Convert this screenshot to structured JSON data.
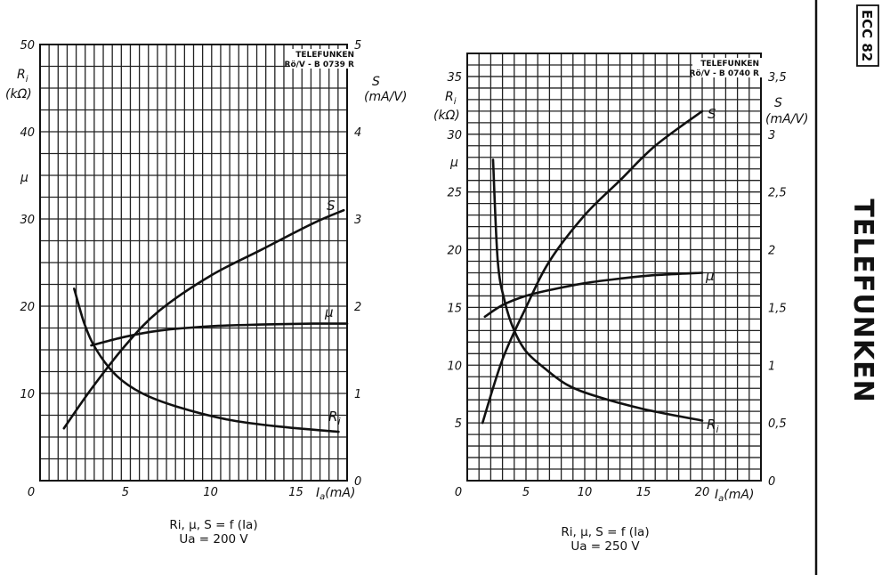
{
  "sidebar": {
    "tube_code": "ECC 82",
    "brand": "TELEFUNKEN"
  },
  "chart_data": [
    {
      "type": "line",
      "stamp_line1": "TELEFUNKEN",
      "stamp_line2": "Rö/V - B 0739 R",
      "xlabel": "I",
      "xlabel_sub": "a",
      "xlabel_unit": "(mA)",
      "xlim": [
        0,
        18
      ],
      "x_ticks": [
        "0",
        "5",
        "10",
        "15"
      ],
      "y_left_lim": [
        0,
        50
      ],
      "y_left_ticks": [
        "10",
        "20",
        "30",
        "40",
        "50"
      ],
      "y_left_labels": {
        "ri": "R",
        "ri_sub": "i",
        "ri_unit": "(kΩ)",
        "mu": "μ"
      },
      "y_right_lim": [
        0,
        5
      ],
      "y_right_ticks": [
        "0",
        "1",
        "2",
        "3",
        "4",
        "5"
      ],
      "y_right_labels": {
        "s": "S",
        "s_unit": "(mA/V)"
      },
      "series": [
        {
          "name": "S",
          "axis": "right",
          "x": [
            1.4,
            3,
            5,
            7,
            10,
            13,
            16,
            17.8
          ],
          "y": [
            0.6,
            1.05,
            1.55,
            1.95,
            2.35,
            2.65,
            2.95,
            3.1
          ]
        },
        {
          "name": "μ",
          "axis": "left",
          "x": [
            3,
            5,
            7,
            10,
            13,
            16,
            18
          ],
          "y": [
            15.5,
            16.5,
            17.2,
            17.7,
            17.9,
            18,
            18
          ]
        },
        {
          "name": "Ri",
          "axis": "left",
          "x": [
            2,
            2.6,
            3.3,
            4.5,
            6,
            8,
            11,
            14,
            17.5
          ],
          "y": [
            22,
            18,
            15,
            12,
            10,
            8.5,
            7,
            6.2,
            5.6
          ]
        }
      ],
      "caption_line1": "Ri, μ, S = f (Ia)",
      "caption_line2": "Ua = 200 V"
    },
    {
      "type": "line",
      "stamp_line1": "TELEFUNKEN",
      "stamp_line2": "Rö/V - B 0740 R",
      "xlabel": "I",
      "xlabel_sub": "a",
      "xlabel_unit": "(mA)",
      "xlim": [
        0,
        25
      ],
      "x_ticks": [
        "0",
        "5",
        "10",
        "15",
        "20"
      ],
      "y_left_lim": [
        0,
        37
      ],
      "y_left_ticks": [
        "5",
        "10",
        "15",
        "20",
        "25",
        "30",
        "35"
      ],
      "y_left_labels": {
        "ri": "R",
        "ri_sub": "i",
        "ri_unit": "(kΩ)",
        "mu": "μ"
      },
      "y_right_lim": [
        0,
        3.7
      ],
      "y_right_ticks": [
        "0",
        "0,5",
        "1",
        "1,5",
        "2",
        "2,5",
        "3",
        "3,5"
      ],
      "y_right_labels": {
        "s": "S",
        "s_unit": "(mA/V)"
      },
      "series": [
        {
          "name": "S",
          "axis": "right",
          "x": [
            1.3,
            3,
            5,
            7,
            10,
            13,
            16,
            20
          ],
          "y": [
            0.5,
            1.05,
            1.5,
            1.9,
            2.3,
            2.6,
            2.9,
            3.2
          ]
        },
        {
          "name": "μ",
          "axis": "left",
          "x": [
            1.5,
            3,
            5,
            7,
            10,
            13,
            16,
            20
          ],
          "y": [
            14.2,
            15.2,
            16,
            16.5,
            17.1,
            17.5,
            17.8,
            18
          ]
        },
        {
          "name": "Ri",
          "axis": "left",
          "x": [
            2.2,
            2.6,
            3.2,
            4,
            5,
            6.5,
            8.5,
            11,
            15,
            20
          ],
          "y": [
            27.8,
            19,
            15.5,
            13,
            11.2,
            9.8,
            8.3,
            7.3,
            6.2,
            5.2
          ]
        }
      ],
      "caption_line1": "Ri, μ, S = f (Ia)",
      "caption_line2": "Ua = 250 V"
    }
  ]
}
